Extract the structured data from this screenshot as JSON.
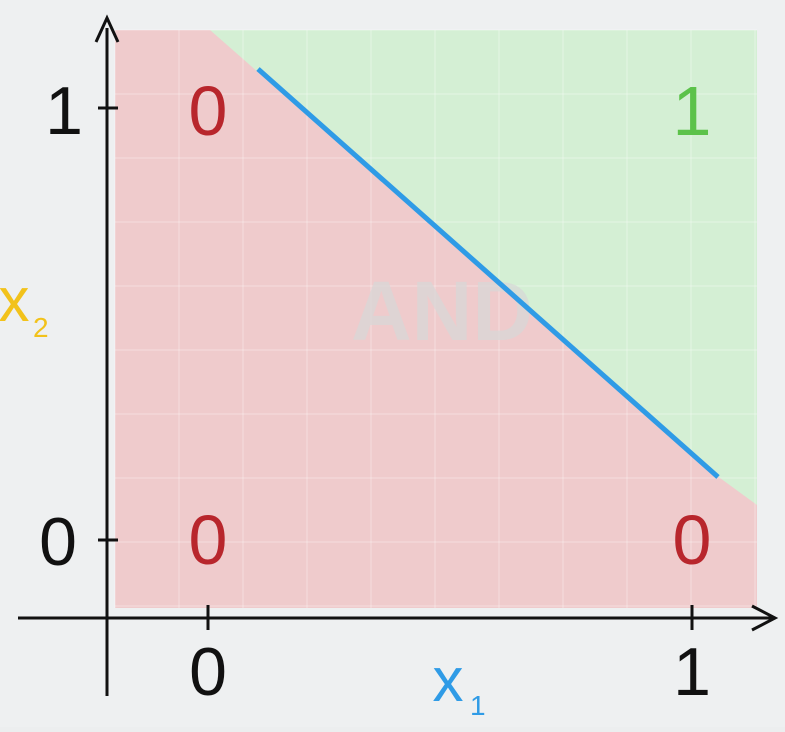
{
  "diagram": {
    "title_watermark": "AND",
    "axes": {
      "x": {
        "label": "x",
        "subscript": "1",
        "tick_labels": [
          "0",
          "1"
        ]
      },
      "y": {
        "label": "x",
        "subscript": "2",
        "tick_labels": [
          "0",
          "1"
        ]
      }
    },
    "points": [
      {
        "x1": 0,
        "x2": 1,
        "output": "0"
      },
      {
        "x1": 1,
        "x2": 1,
        "output": "1"
      },
      {
        "x1": 0,
        "x2": 0,
        "output": "0"
      },
      {
        "x1": 1,
        "x2": 0,
        "output": "0"
      }
    ],
    "colors": {
      "region_0": "#f2c6cb",
      "region_1": "#cfeecf",
      "boundary_line": "#2f9be6",
      "output_0": "#b8262c",
      "output_1": "#5cc24a",
      "x_axis_label": "#2f9be6",
      "y_axis_label": "#f2c21b",
      "axis": "#111111",
      "watermark": "#d7d7d7"
    }
  }
}
